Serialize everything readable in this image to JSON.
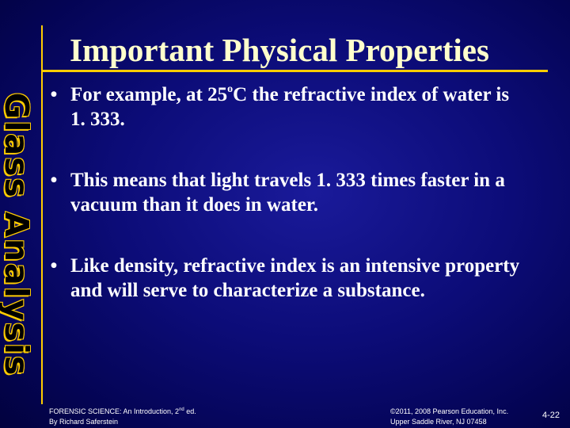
{
  "sidebar": {
    "title": "Glass Analysis"
  },
  "slide": {
    "title": "Important Physical Properties",
    "bullets": [
      {
        "marker": "•",
        "parts": [
          "For example, at 25",
          "o",
          "C the refractive index of water is 1. 333."
        ]
      },
      {
        "marker": "•",
        "text": "This means that light travels 1. 333 times faster in a vacuum than it does in water."
      },
      {
        "marker": "•",
        "text": "Like density, refractive index is an intensive property and will serve to characterize a substance."
      }
    ]
  },
  "footer": {
    "book_line1_pre": "FORENSIC SCIENCE: An Introduction, 2",
    "book_line1_sup": "nd",
    "book_line1_post": " ed.",
    "book_line2": "By Richard Saferstein",
    "copyright_line1": "©2011, 2008 Pearson Education, Inc.",
    "copyright_line2": "Upper Saddle River, NJ 07458",
    "page_number": "4-22"
  },
  "colors": {
    "background": "#0c0c78",
    "accent": "#ffcc00",
    "title": "#ffffcc",
    "text": "#ffffff"
  }
}
